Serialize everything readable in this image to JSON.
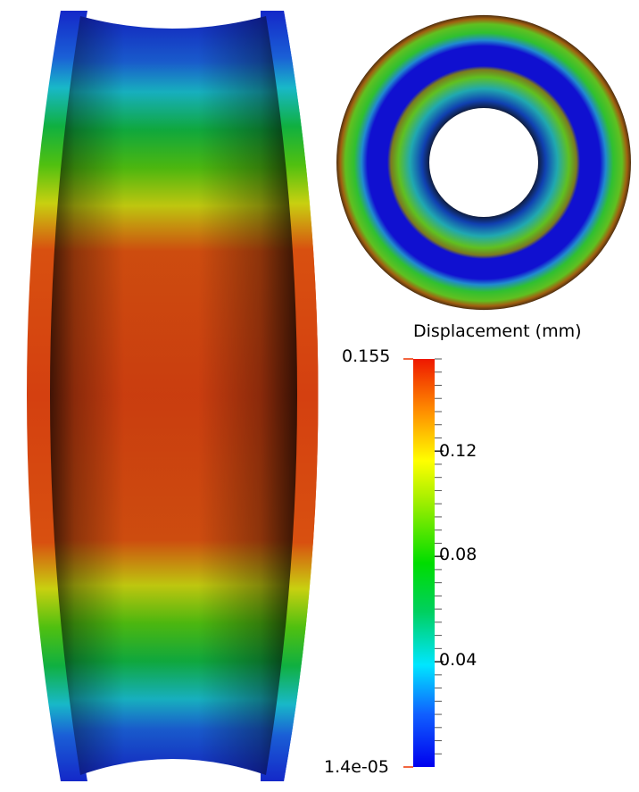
{
  "legend": {
    "title": "Displacement (mm)",
    "max_label": "0.155",
    "min_label": "1.4e-05",
    "ticks": [
      {
        "value": 0.12,
        "label": "0.12"
      },
      {
        "value": 0.08,
        "label": "0.08"
      },
      {
        "value": 0.04,
        "label": "0.04"
      }
    ],
    "range": [
      1.4e-05,
      0.155
    ],
    "colormap": [
      "#0000e6",
      "#1e90ff",
      "#00e5ff",
      "#00cc55",
      "#00dd00",
      "#aaee00",
      "#ffff00",
      "#ff8800",
      "#ee2200"
    ]
  },
  "views": [
    {
      "name": "side-section-view"
    },
    {
      "name": "top-ring-view"
    }
  ]
}
